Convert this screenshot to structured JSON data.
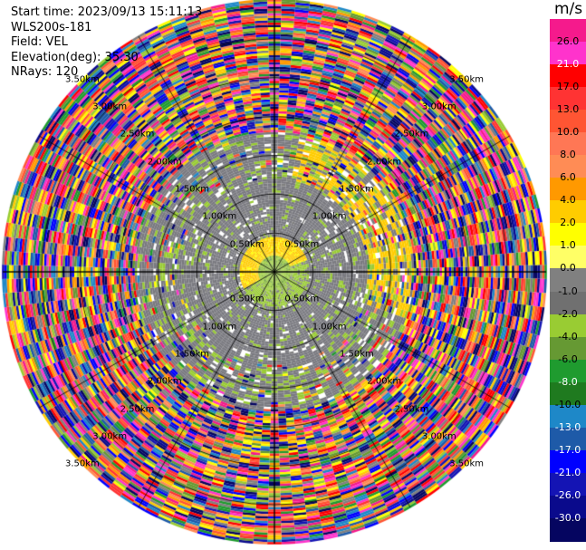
{
  "header": {
    "start_time": "Start time: 2023/09/13 15:11:13",
    "instrument": "WLS200s-181",
    "field": "Field: VEL",
    "elevation": "Elevation(deg): 35.30",
    "nrays": "NRays: 120"
  },
  "colorbar": {
    "unit": "m/s",
    "ticks": [
      "26.0",
      "21.0",
      "17.0",
      "13.0",
      "10.0",
      "8.0",
      "6.0",
      "4.0",
      "2.0",
      "1.0",
      "0.0",
      "-1.0",
      "-2.0",
      "-4.0",
      "-6.0",
      "-8.0",
      "-10.0",
      "-13.0",
      "-17.0",
      "-21.0",
      "-26.0",
      "-30.0"
    ],
    "colors": [
      "#f51a8c",
      "#ff33cc",
      "#ff0000",
      "#ff3333",
      "#ff5533",
      "#ff7755",
      "#ff8c55",
      "#ff9900",
      "#ffcc00",
      "#ffff00",
      "#ffff66",
      "#808080",
      "#707070",
      "#99cc33",
      "#669933",
      "#1f9b2f",
      "#1f7a1f",
      "#1e88c8",
      "#1e5aa8",
      "#0000ff",
      "#1414b4",
      "#0a0a8c",
      "#050560"
    ]
  },
  "chart_data": {
    "type": "heatmap",
    "subtype": "polar-ppi",
    "field": "VEL",
    "units": "m/s",
    "nrays": 120,
    "range_rings_km": [
      0.5,
      1.0,
      1.5,
      2.0,
      2.5,
      3.0
    ],
    "ring_labels": [
      "0.50km",
      "1.00km",
      "1.50km",
      "2.00km",
      "2.50km",
      "3.00km",
      "3.50km"
    ],
    "max_range_km": 3.5,
    "clim": [
      -30.0,
      26.0
    ],
    "regions": [
      {
        "range_km": [
          0.0,
          0.5
        ],
        "note": "yellow/green near-field"
      },
      {
        "range_km": [
          0.5,
          1.5
        ],
        "note": "mostly grey 0 m/s"
      },
      {
        "range_km": [
          1.5,
          3.5
        ],
        "note": "noisy multicolor"
      }
    ]
  }
}
